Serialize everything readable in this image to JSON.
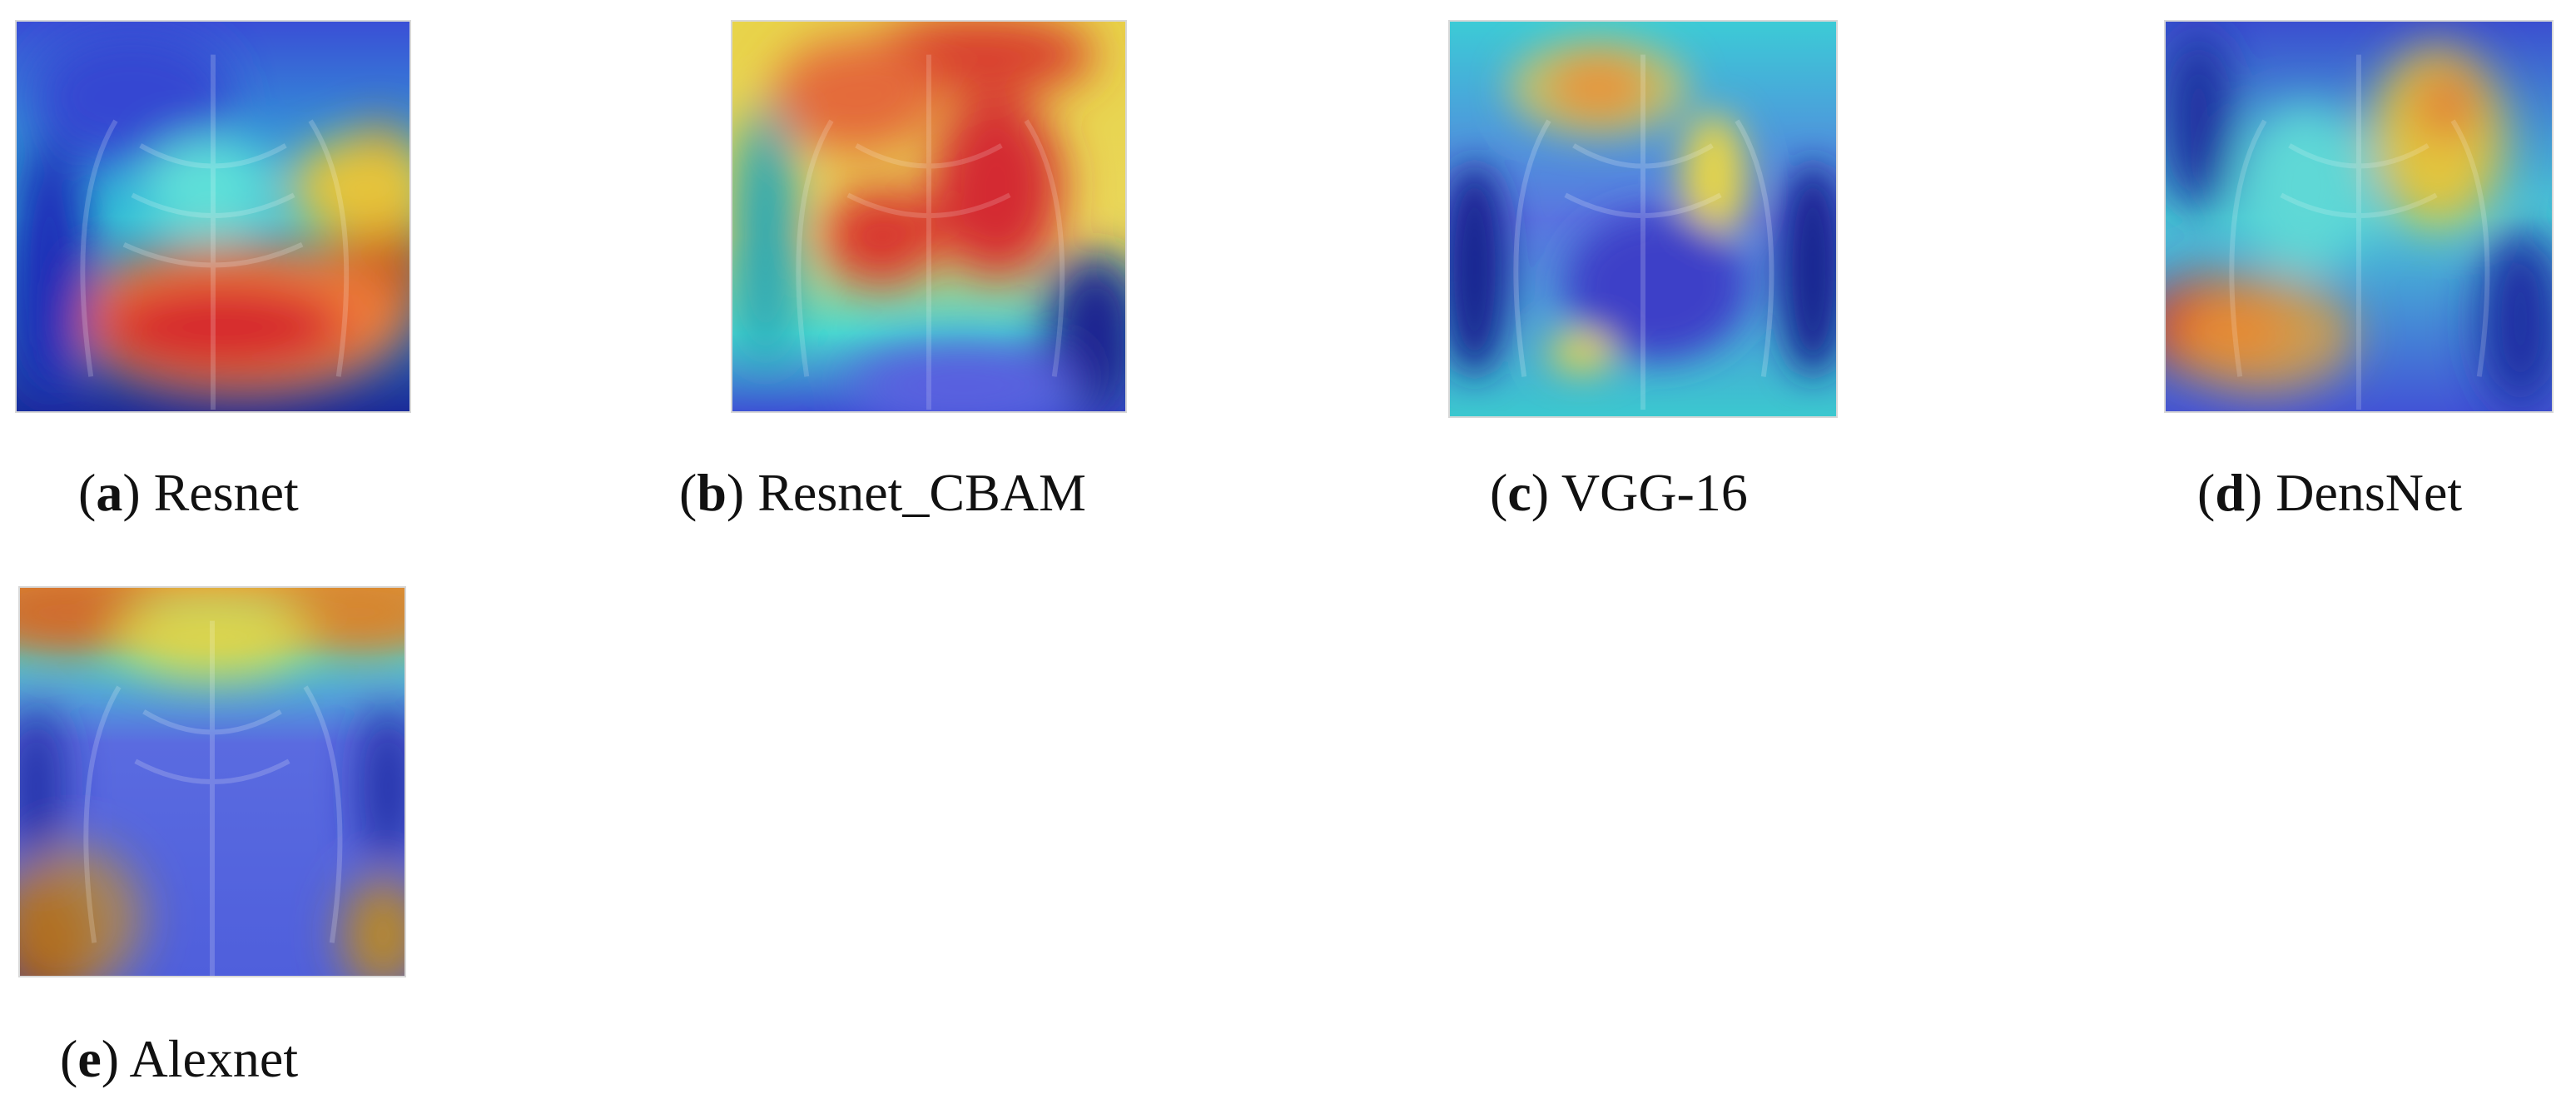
{
  "figure": {
    "panels": [
      {
        "letter": "a",
        "label": "Resnet"
      },
      {
        "letter": "b",
        "label": "Resnet_CBAM"
      },
      {
        "letter": "c",
        "label": "VGG-16"
      },
      {
        "letter": "d",
        "label": "DensNet"
      },
      {
        "letter": "e",
        "label": "Alexnet"
      }
    ]
  },
  "colors": {
    "hot_red": "#d7262b",
    "orange": "#f08a2b",
    "yellow": "#e8d84a",
    "cyan": "#3fd7d9",
    "blue": "#4b63d8",
    "navy": "#141a8c"
  }
}
